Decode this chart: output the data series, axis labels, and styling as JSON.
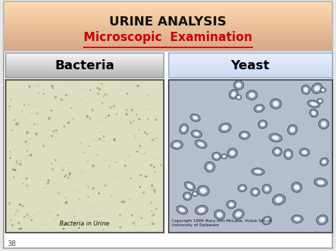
{
  "title_line1": "URINE ANALYSIS",
  "title_line2": "Microscopic  Examination",
  "label_bacteria": "Bacteria",
  "label_yeast": "Yeast",
  "bacteria_caption": "Bacteria in Urine",
  "yeast_caption": "Copyright 1999 Mary Ann McLane, Vickie Silcott\nUniversity of Delaware",
  "page_number": "38",
  "outer_bg": "#e8e8e8",
  "title_text_color": "#111111",
  "title_line2_color": "#cc0000"
}
